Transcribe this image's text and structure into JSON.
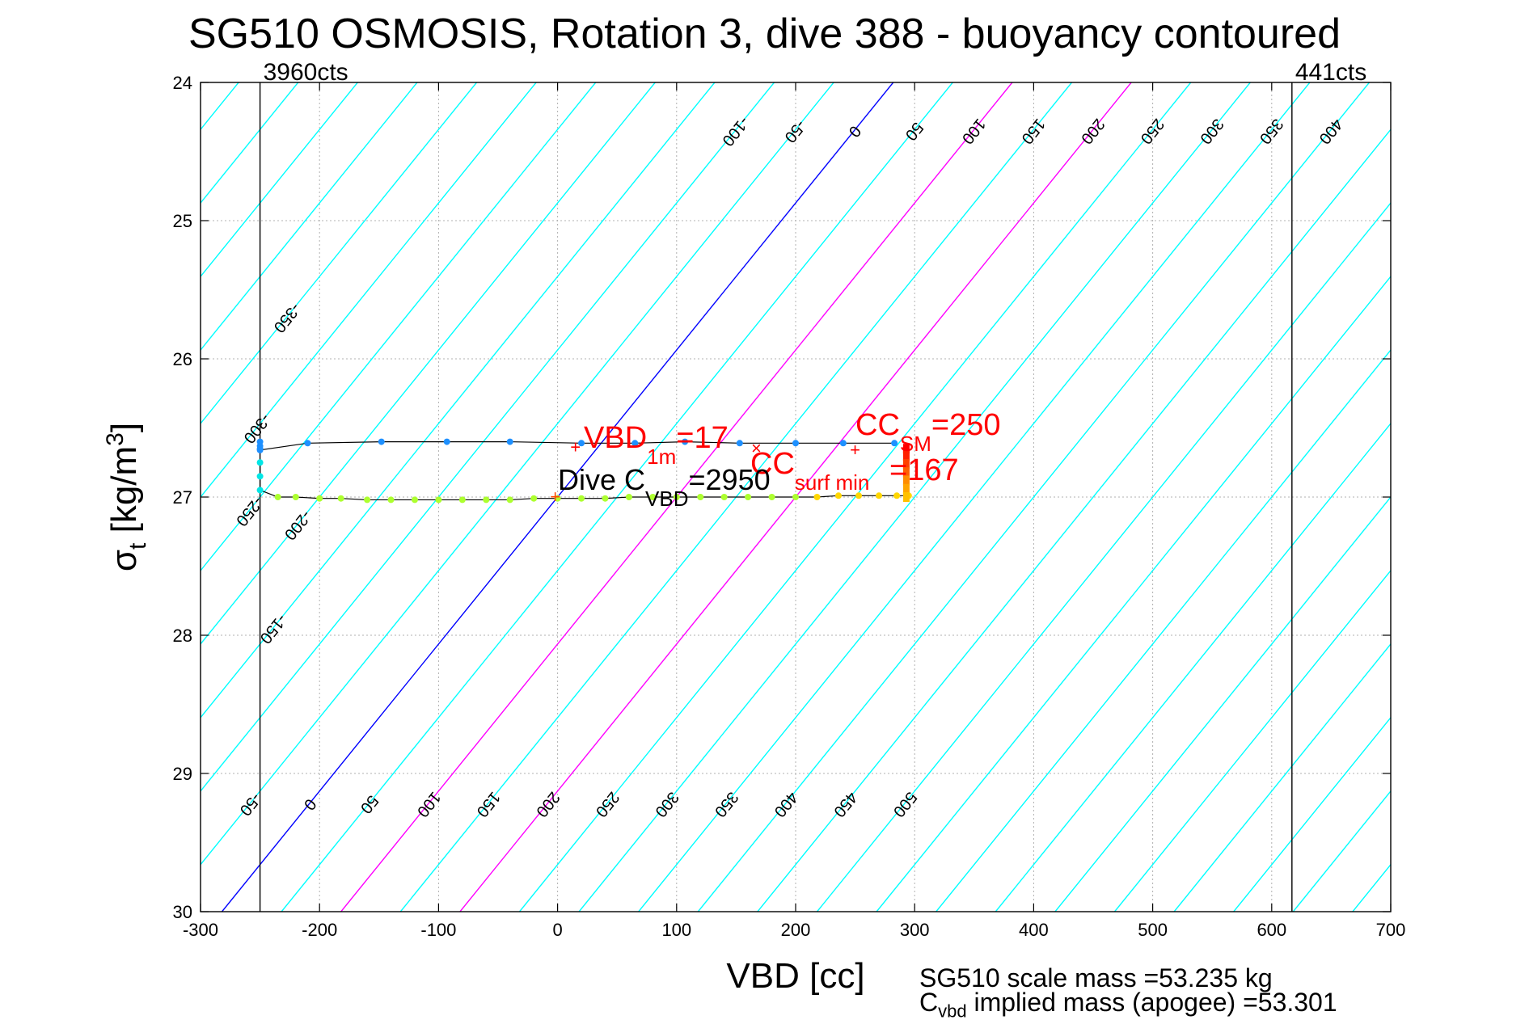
{
  "title": "SG510 OSMOSIS, Rotation 3, dive 388 - buoyancy contoured",
  "chart_data": {
    "type": "line",
    "title": "SG510 OSMOSIS, Rotation 3, dive 388 - buoyancy contoured",
    "xlabel": "VBD [cc]",
    "ylabel_base": "σ",
    "ylabel_sub": "t",
    "ylabel_unit": "[kg/m",
    "ylabel_sup": "3",
    "ylabel_close": "]",
    "xlim": [
      -300,
      700
    ],
    "ylim": [
      24,
      30
    ],
    "y_reversed": true,
    "grid": true,
    "x_ticks": [
      -300,
      -200,
      -100,
      0,
      100,
      200,
      300,
      400,
      500,
      600,
      700
    ],
    "y_ticks": [
      24,
      25,
      26,
      27,
      28,
      29,
      30
    ],
    "limit_lines": [
      {
        "x": -250,
        "label": "3960cts"
      },
      {
        "x": 617,
        "label": "441cts"
      }
    ],
    "contour_levels_top": [
      -350,
      -300,
      -250,
      -200,
      -150,
      -100,
      -50,
      0,
      50,
      100,
      150,
      200,
      250,
      300,
      350,
      400,
      450,
      500
    ],
    "contour_levels_bottom": [
      -100,
      -50,
      0,
      50,
      100,
      150,
      200,
      250,
      300,
      350,
      400,
      450,
      500
    ],
    "contour_spacing_cc": 50,
    "contour_slope_cc_per_sigma": -94,
    "highlight_contours": [
      {
        "level": 0,
        "color": "#0000ff"
      },
      {
        "level": 100,
        "color": "#ff00ff"
      },
      {
        "level": 200,
        "color": "#ff00ff"
      }
    ],
    "contour_color": "#00ffff",
    "dive_points": {
      "x": [
        -250,
        -250,
        -250,
        -250,
        -210,
        -148,
        -93,
        -40,
        20,
        65,
        107,
        153,
        200,
        240,
        283
      ],
      "y": [
        26.6,
        26.63,
        26.65,
        26.66,
        26.61,
        26.6,
        26.6,
        26.6,
        26.61,
        26.61,
        26.6,
        26.61,
        26.61,
        26.61,
        26.61
      ],
      "color": "#1e90ff"
    },
    "climb_points": {
      "x": [
        -250,
        -250,
        -250,
        -235,
        -220,
        -200,
        -182,
        -160,
        -140,
        -120,
        -100,
        -80,
        -60,
        -40,
        -20,
        0,
        20,
        40,
        60,
        80,
        100,
        120,
        140,
        160,
        180,
        200,
        218,
        236,
        253,
        270,
        285,
        295
      ],
      "y": [
        26.75,
        26.85,
        26.95,
        27.0,
        27.0,
        27.01,
        27.01,
        27.02,
        27.02,
        27.02,
        27.02,
        27.02,
        27.02,
        27.02,
        27.01,
        27.01,
        27.01,
        27.01,
        27.0,
        27.0,
        27.0,
        27.0,
        27.0,
        27.0,
        27.0,
        27.0,
        27.0,
        26.99,
        26.99,
        26.99,
        26.99,
        26.99
      ],
      "color": "#adff2f"
    },
    "surface_points": {
      "x": [
        293,
        293,
        293,
        293,
        293,
        293,
        293
      ],
      "y": [
        26.65,
        26.7,
        26.76,
        26.82,
        26.88,
        26.94,
        27.0
      ]
    },
    "annotations": [
      {
        "name": "vbd-1m",
        "base": "VBD",
        "sub": "1m",
        "tail": "=17",
        "x": 15,
        "y": 26.64,
        "color": "#ff0000"
      },
      {
        "name": "cc-sm",
        "base": "CC",
        "sub": "SM",
        "tail": "=250",
        "x": 250,
        "y": 26.66,
        "color": "#ff0000"
      },
      {
        "name": "cc-surf-min",
        "base": "CC",
        "sub": "surf min",
        "tail": "=167",
        "x": 167,
        "y": 26.65,
        "color": "#ff0000"
      },
      {
        "name": "dive-cvbd",
        "base": "Dive C",
        "sub": "VBD",
        "tail": "=2950",
        "x": -2,
        "y": 27.0,
        "color": "#000000"
      }
    ],
    "footer_line1": "SG510 scale mass =53.235 kg",
    "footer_line2_base": "C",
    "footer_line2_sub": "vbd",
    "footer_line2_tail": " implied mass (apogee) =53.301"
  }
}
